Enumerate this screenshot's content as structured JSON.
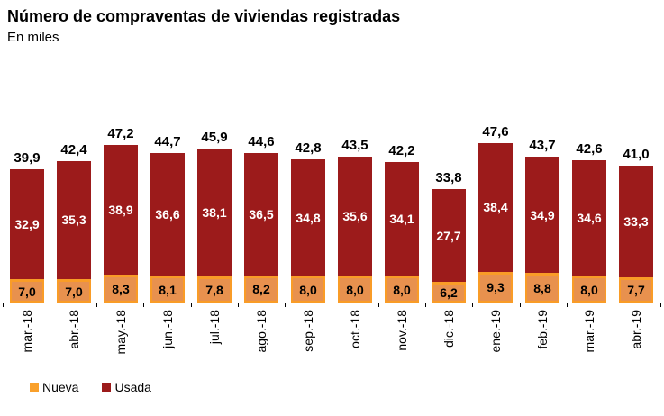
{
  "header": {
    "title": "Número de compraventas de viviendas registradas",
    "subtitle": "En miles"
  },
  "legend": [
    {
      "label": "Nueva",
      "swatch_color": "#F9A02B"
    },
    {
      "label": "Usada",
      "swatch_color": "#9C1B1B"
    }
  ],
  "chart_data": {
    "type": "bar",
    "stacked": true,
    "title": "Número de compraventas de viviendas registradas",
    "subtitle": "En miles",
    "unit": "miles",
    "decimal_separator": ",",
    "grid": false,
    "legend_position": "bottom-left",
    "ylim": [
      0,
      50
    ],
    "categories": [
      "mar.-18",
      "abr.-18",
      "may.-18",
      "jun.-18",
      "jul.-18",
      "ago.-18",
      "sep.-18",
      "oct.-18",
      "nov.-18",
      "dic.-18",
      "ene.-19",
      "feb.-19",
      "mar.-19",
      "abr.-19"
    ],
    "series": [
      {
        "name": "Nueva",
        "fill": "#E8914E",
        "border": "#F99C27",
        "label_color": "#000000",
        "values": [
          7.0,
          7.0,
          8.3,
          8.1,
          7.8,
          8.2,
          8.0,
          8.0,
          8.0,
          6.2,
          9.3,
          8.8,
          8.0,
          7.7
        ]
      },
      {
        "name": "Usada",
        "fill": "#9C1B1B",
        "border": "#9C1B1B",
        "label_color": "#FFFFFF",
        "values": [
          32.9,
          35.3,
          38.9,
          36.6,
          38.1,
          36.5,
          34.8,
          35.6,
          34.1,
          27.7,
          38.4,
          34.9,
          34.6,
          33.3
        ]
      }
    ],
    "totals": [
      39.9,
      42.4,
      47.2,
      44.7,
      45.9,
      44.6,
      42.8,
      43.5,
      42.2,
      33.8,
      47.6,
      43.7,
      42.6,
      41.0
    ]
  }
}
